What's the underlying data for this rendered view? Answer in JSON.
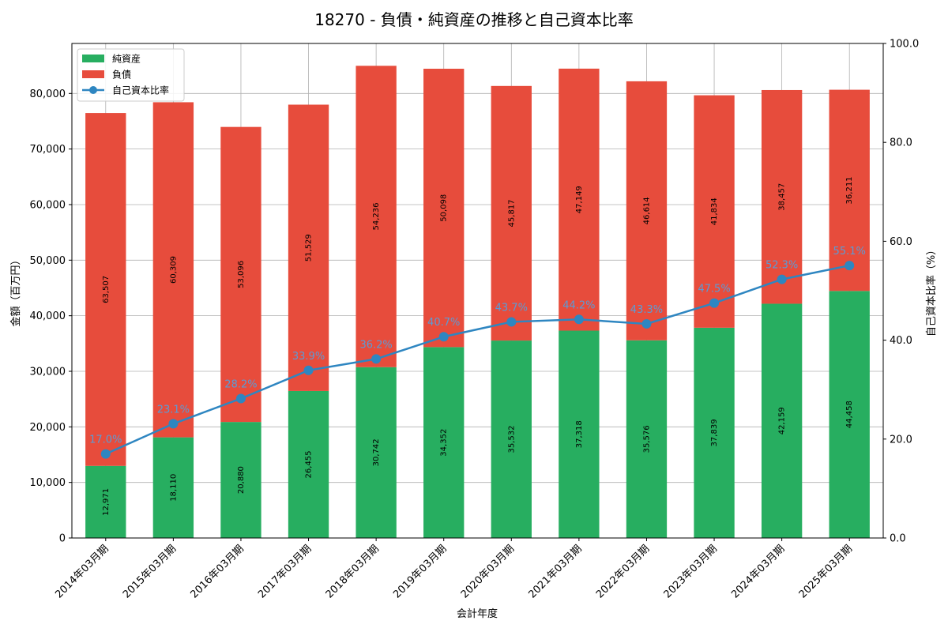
{
  "chart_data": {
    "type": "bar",
    "title": "18270 - 負債・純資産の推移と自己資本比率",
    "xlabel": "会計年度",
    "ylabel": "金額（百万円）",
    "y2label": "自己資本比率（%）",
    "ylim": [
      0,
      89000
    ],
    "y2lim": [
      0,
      100
    ],
    "yticks": [
      0,
      10000,
      20000,
      30000,
      40000,
      50000,
      60000,
      70000,
      80000
    ],
    "ytick_labels": [
      "0",
      "10,000",
      "20,000",
      "30,000",
      "40,000",
      "50,000",
      "60,000",
      "70,000",
      "80,000"
    ],
    "y2ticks": [
      0,
      20,
      40,
      60,
      80,
      100
    ],
    "y2tick_labels": [
      "0.0",
      "20.0",
      "40.0",
      "60.0",
      "80.0",
      "100.0"
    ],
    "categories": [
      "2014年03月期",
      "2015年03月期",
      "2016年03月期",
      "2017年03月期",
      "2018年03月期",
      "2019年03月期",
      "2020年03月期",
      "2021年03月期",
      "2022年03月期",
      "2023年03月期",
      "2024年03月期",
      "2025年03月期"
    ],
    "series": [
      {
        "name": "純資産",
        "kind": "bar",
        "color": "#27ae60",
        "values": [
          12971,
          18110,
          20880,
          26455,
          30742,
          34352,
          35532,
          37318,
          35576,
          37839,
          42159,
          44458
        ],
        "labels": [
          "12,971",
          "18,110",
          "20,880",
          "26,455",
          "30,742",
          "34,352",
          "35,532",
          "37,318",
          "35,576",
          "37,839",
          "42,159",
          "44,458"
        ]
      },
      {
        "name": "負債",
        "kind": "bar",
        "color": "#e74c3c",
        "values": [
          63507,
          60309,
          53096,
          51529,
          54236,
          50098,
          45817,
          47149,
          46614,
          41834,
          38457,
          36211
        ],
        "labels": [
          "63,507",
          "60,309",
          "53,096",
          "51,529",
          "54,236",
          "50,098",
          "45,817",
          "47,149",
          "46,614",
          "41,834",
          "38,457",
          "36,211"
        ]
      },
      {
        "name": "自己資本比率",
        "kind": "line",
        "axis": "right",
        "color": "#2e86c1",
        "label_color": "#5b9bd5",
        "values": [
          17.0,
          23.1,
          28.2,
          33.9,
          36.2,
          40.7,
          43.7,
          44.2,
          43.3,
          47.5,
          52.3,
          55.1
        ],
        "labels": [
          "17.0%",
          "23.1%",
          "28.2%",
          "33.9%",
          "36.2%",
          "40.7%",
          "43.7%",
          "44.2%",
          "43.3%",
          "47.5%",
          "52.3%",
          "55.1%"
        ]
      }
    ],
    "legend": {
      "placement": "top-left",
      "entries": [
        "純資産",
        "負債",
        "自己資本比率"
      ]
    },
    "grid": true
  }
}
